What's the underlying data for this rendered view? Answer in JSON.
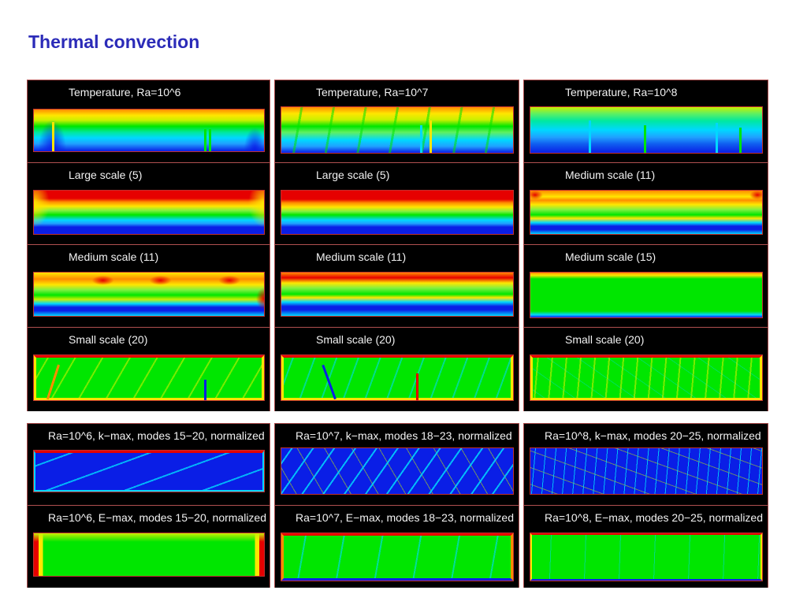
{
  "page": {
    "title": "Thermal convection"
  },
  "colors": {
    "title": "#2b2bb8",
    "panel_bg": "#000000",
    "frame": "#b05050",
    "label": "#f2f2f2",
    "jet_red": "#e60000",
    "jet_orange": "#ff8c00",
    "jet_yellow": "#ffe600",
    "jet_green": "#00e600",
    "jet_cyan": "#00d8ff",
    "jet_blue": "#0a1ee6"
  },
  "grid_top": {
    "columns": [
      {
        "panels": [
          {
            "label": "Temperature, Ra=10^6",
            "field": "temperature"
          },
          {
            "label": "Large scale (5)",
            "field": "large"
          },
          {
            "label": "Medium scale (11)",
            "field": "medium"
          },
          {
            "label": "Small scale (20)",
            "field": "small"
          }
        ]
      },
      {
        "panels": [
          {
            "label": "Temperature, Ra=10^7",
            "field": "temperature"
          },
          {
            "label": "Large scale (5)",
            "field": "large"
          },
          {
            "label": "Medium  scale (11)",
            "field": "medium"
          },
          {
            "label": "Small scale (20)",
            "field": "small"
          }
        ]
      },
      {
        "panels": [
          {
            "label": "Temperature, Ra=10^8",
            "field": "temperature"
          },
          {
            "label": "Medium scale (11)",
            "field": "medium"
          },
          {
            "label": "Medium  scale (15)",
            "field": "medium15"
          },
          {
            "label": "Small scale (20)",
            "field": "small"
          }
        ]
      }
    ]
  },
  "grid_bottom": {
    "columns": [
      {
        "panels": [
          {
            "label": "Ra=10^6, k−max, modes 15−20, normalized",
            "field": "kmax"
          },
          {
            "label": "Ra=10^6, E−max, modes 15−20, normalized",
            "field": "emax"
          }
        ]
      },
      {
        "panels": [
          {
            "label": "Ra=10^7, k−max, modes 18−23, normalized",
            "field": "kmax"
          },
          {
            "label": "Ra=10^7, E−max, modes 18−23, normalized",
            "field": "emax"
          }
        ]
      },
      {
        "panels": [
          {
            "label": "Ra=10^8, k−max, modes 20−25, normalized",
            "field": "kmax"
          },
          {
            "label": "Ra=10^8, E−max, modes 20−25, normalized",
            "field": "emax"
          }
        ]
      }
    ]
  }
}
